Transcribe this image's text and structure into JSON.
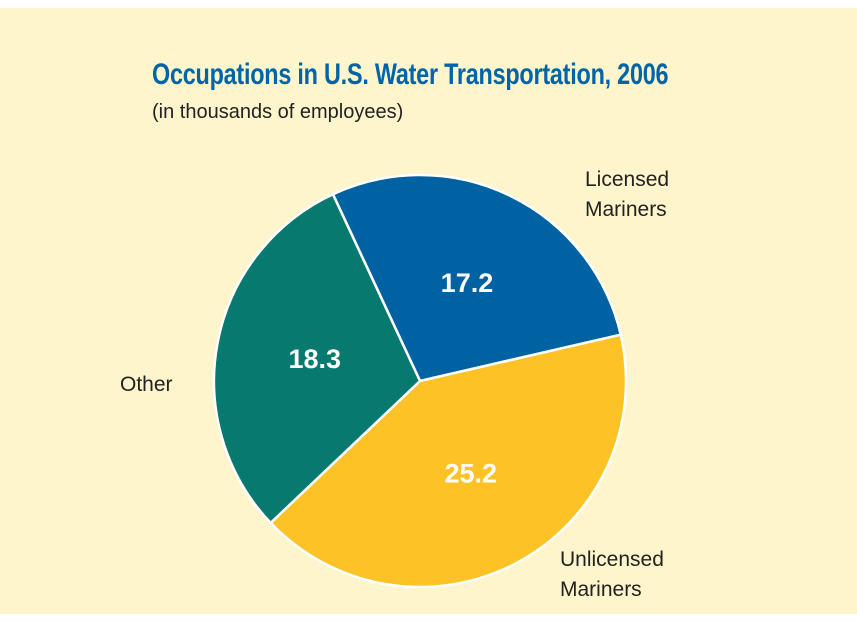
{
  "chart_data": {
    "type": "pie",
    "title": "Occupations in U.S. Water Transportation, 2006",
    "subtitle": "(in thousands of employees)",
    "categories": [
      "Licensed Mariners",
      "Unlicensed Mariners",
      "Other"
    ],
    "values": [
      17.2,
      25.2,
      18.3
    ],
    "colors": [
      "#0062a3",
      "#fdc225",
      "#08796f"
    ]
  }
}
